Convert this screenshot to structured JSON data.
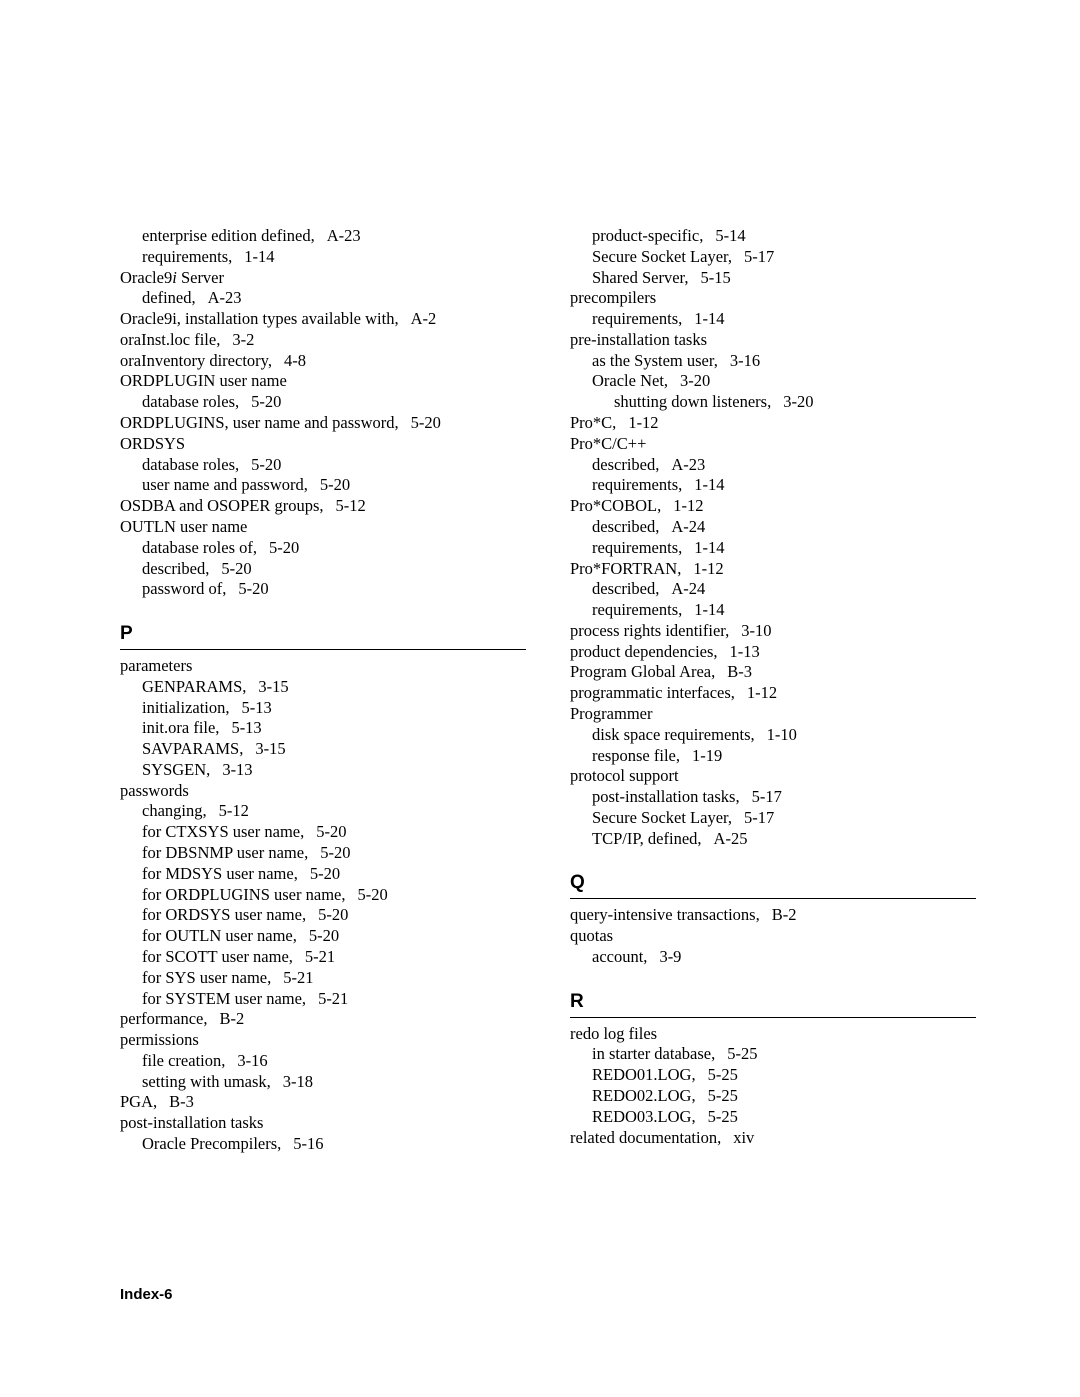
{
  "left_column": [
    {
      "level": 1,
      "text": "enterprise edition defined,",
      "ref": "A-23"
    },
    {
      "level": 1,
      "text": "requirements,",
      "ref": "1-14"
    },
    {
      "level": 0,
      "text_pre": "Oracle9",
      "italic": "i",
      "text_post": " Server"
    },
    {
      "level": 1,
      "text": "defined,",
      "ref": "A-23"
    },
    {
      "level": 0,
      "text": "Oracle9i, installation types available with,",
      "ref": "A-2"
    },
    {
      "level": 0,
      "text": "oraInst.loc file,",
      "ref": "3-2"
    },
    {
      "level": 0,
      "text": "oraInventory directory,",
      "ref": "4-8"
    },
    {
      "level": 0,
      "text": "ORDPLUGIN user name"
    },
    {
      "level": 1,
      "text": "database roles,",
      "ref": "5-20"
    },
    {
      "level": 0,
      "text": "ORDPLUGINS, user name and password,",
      "ref": "5-20"
    },
    {
      "level": 0,
      "text": "ORDSYS"
    },
    {
      "level": 1,
      "text": "database roles,",
      "ref": "5-20"
    },
    {
      "level": 1,
      "text": "user name and password,",
      "ref": "5-20"
    },
    {
      "level": 0,
      "text": "OSDBA and OSOPER groups,",
      "ref": "5-12"
    },
    {
      "level": 0,
      "text": "OUTLN user name"
    },
    {
      "level": 1,
      "text": "database roles of,",
      "ref": "5-20"
    },
    {
      "level": 1,
      "text": "described,",
      "ref": "5-20"
    },
    {
      "level": 1,
      "text": "password of,",
      "ref": "5-20"
    }
  ],
  "section_P": "P",
  "left_column_P": [
    {
      "level": 0,
      "text": "parameters"
    },
    {
      "level": 1,
      "text": "GENPARAMS,",
      "ref": "3-15"
    },
    {
      "level": 1,
      "text": "initialization,",
      "ref": "5-13"
    },
    {
      "level": 1,
      "text": "init.ora file,",
      "ref": "5-13"
    },
    {
      "level": 1,
      "text": "SAVPARAMS,",
      "ref": "3-15"
    },
    {
      "level": 1,
      "text": "SYSGEN,",
      "ref": "3-13"
    },
    {
      "level": 0,
      "text": "passwords"
    },
    {
      "level": 1,
      "text": "changing,",
      "ref": "5-12"
    },
    {
      "level": 1,
      "text": "for CTXSYS user name,",
      "ref": "5-20"
    },
    {
      "level": 1,
      "text": "for DBSNMP user name,",
      "ref": "5-20"
    },
    {
      "level": 1,
      "text": "for MDSYS user name,",
      "ref": "5-20"
    },
    {
      "level": 1,
      "text": "for ORDPLUGINS user name,",
      "ref": "5-20"
    },
    {
      "level": 1,
      "text": "for ORDSYS user name,",
      "ref": "5-20"
    },
    {
      "level": 1,
      "text": "for OUTLN user name,",
      "ref": "5-20"
    },
    {
      "level": 1,
      "text": "for SCOTT user name,",
      "ref": "5-21"
    },
    {
      "level": 1,
      "text": "for SYS user name,",
      "ref": "5-21"
    },
    {
      "level": 1,
      "text": "for SYSTEM user name,",
      "ref": "5-21"
    },
    {
      "level": 0,
      "text": "performance,",
      "ref": "B-2"
    },
    {
      "level": 0,
      "text": "permissions"
    },
    {
      "level": 1,
      "text": "file creation,",
      "ref": "3-16"
    },
    {
      "level": 1,
      "text": "setting with umask,",
      "ref": "3-18"
    },
    {
      "level": 0,
      "text": "PGA,",
      "ref": "B-3"
    },
    {
      "level": 0,
      "text": "post-installation tasks"
    },
    {
      "level": 1,
      "text": "Oracle Precompilers,",
      "ref": "5-16"
    }
  ],
  "right_column": [
    {
      "level": 1,
      "text": "product-specific,",
      "ref": "5-14"
    },
    {
      "level": 1,
      "text": "Secure Socket Layer,",
      "ref": "5-17"
    },
    {
      "level": 1,
      "text": "Shared Server,",
      "ref": "5-15"
    },
    {
      "level": 0,
      "text": "precompilers"
    },
    {
      "level": 1,
      "text": "requirements,",
      "ref": "1-14"
    },
    {
      "level": 0,
      "text": "pre-installation tasks"
    },
    {
      "level": 1,
      "text": "as the System user,",
      "ref": "3-16"
    },
    {
      "level": 1,
      "text": "Oracle Net,",
      "ref": "3-20"
    },
    {
      "level": 2,
      "text": "shutting down listeners,",
      "ref": "3-20"
    },
    {
      "level": 0,
      "text": "Pro*C,",
      "ref": "1-12"
    },
    {
      "level": 0,
      "text": "Pro*C/C++"
    },
    {
      "level": 1,
      "text": "described,",
      "ref": "A-23"
    },
    {
      "level": 1,
      "text": "requirements,",
      "ref": "1-14"
    },
    {
      "level": 0,
      "text": "Pro*COBOL,",
      "ref": "1-12"
    },
    {
      "level": 1,
      "text": "described,",
      "ref": "A-24"
    },
    {
      "level": 1,
      "text": "requirements,",
      "ref": "1-14"
    },
    {
      "level": 0,
      "text": "Pro*FORTRAN,",
      "ref": "1-12"
    },
    {
      "level": 1,
      "text": "described,",
      "ref": "A-24"
    },
    {
      "level": 1,
      "text": "requirements,",
      "ref": "1-14"
    },
    {
      "level": 0,
      "text": "process rights identifier,",
      "ref": "3-10"
    },
    {
      "level": 0,
      "text": "product dependencies,",
      "ref": "1-13"
    },
    {
      "level": 0,
      "text": "Program Global Area,",
      "ref": "B-3"
    },
    {
      "level": 0,
      "text": "programmatic interfaces,",
      "ref": "1-12"
    },
    {
      "level": 0,
      "text": "Programmer"
    },
    {
      "level": 1,
      "text": "disk space requirements,",
      "ref": "1-10"
    },
    {
      "level": 1,
      "text": "response file,",
      "ref": "1-19"
    },
    {
      "level": 0,
      "text": "protocol support"
    },
    {
      "level": 1,
      "text": "post-installation tasks,",
      "ref": "5-17"
    },
    {
      "level": 1,
      "text": "Secure Socket Layer,",
      "ref": "5-17"
    },
    {
      "level": 1,
      "text": "TCP/IP, defined,",
      "ref": "A-25"
    }
  ],
  "section_Q": "Q",
  "right_column_Q": [
    {
      "level": 0,
      "text": "query-intensive transactions,",
      "ref": "B-2"
    },
    {
      "level": 0,
      "text": "quotas"
    },
    {
      "level": 1,
      "text": "account,",
      "ref": "3-9"
    }
  ],
  "section_R": "R",
  "right_column_R": [
    {
      "level": 0,
      "text": "redo log files"
    },
    {
      "level": 1,
      "text": "in starter database,",
      "ref": "5-25"
    },
    {
      "level": 1,
      "text": "REDO01.LOG,",
      "ref": "5-25"
    },
    {
      "level": 1,
      "text": "REDO02.LOG,",
      "ref": "5-25"
    },
    {
      "level": 1,
      "text": "REDO03.LOG,",
      "ref": "5-25"
    },
    {
      "level": 0,
      "text": "related documentation,",
      "ref": "xiv"
    }
  ],
  "footer": "Index-6"
}
